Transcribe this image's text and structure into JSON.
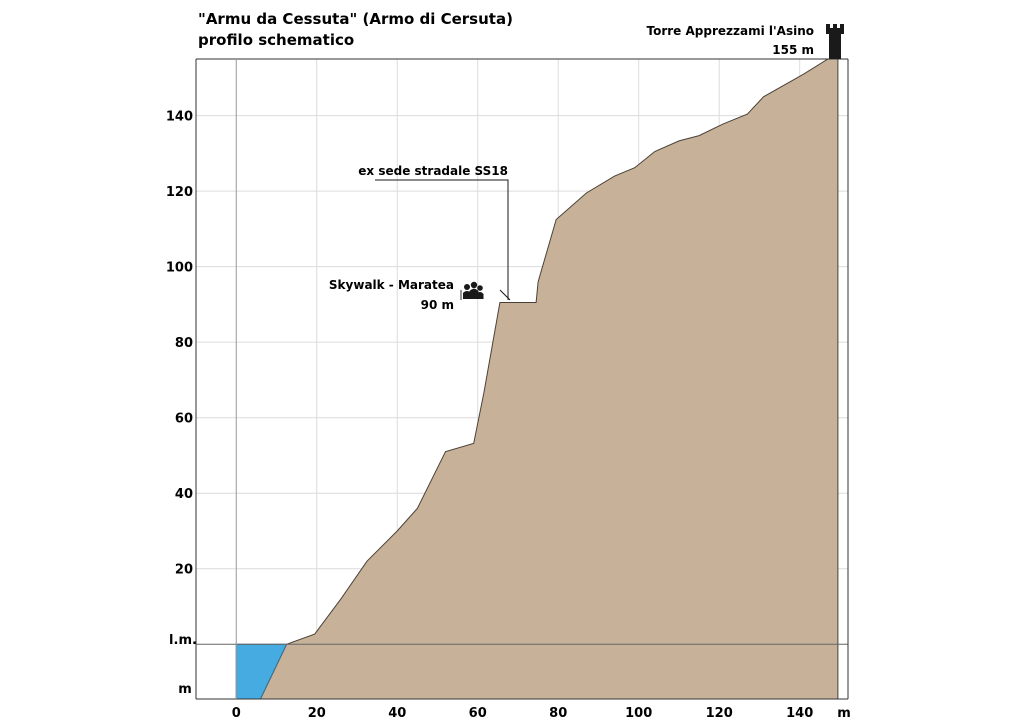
{
  "chart_data": {
    "type": "area",
    "title": "\"Armu da Cessuta\" (Armo di Cersuta)",
    "subtitle": "profilo schematico",
    "xlabel": "m",
    "ylabel": "m",
    "x_ticks": [
      0,
      20,
      40,
      60,
      80,
      100,
      120,
      140
    ],
    "y_ticks": [
      20,
      40,
      60,
      80,
      100,
      120,
      140
    ],
    "sea_level_label": "l.m.",
    "xlim": [
      -10,
      152
    ],
    "ylim": [
      -14.5,
      155
    ],
    "grid": true,
    "series": [
      {
        "points": [
          [
            6,
            -14.5
          ],
          [
            12.5,
            0
          ],
          [
            19.5,
            2.7
          ],
          [
            26,
            12
          ],
          [
            32.5,
            22
          ],
          [
            40,
            30
          ],
          [
            45,
            36
          ],
          [
            52,
            51
          ],
          [
            59,
            53.2
          ],
          [
            61.5,
            66.5
          ],
          [
            65.5,
            90.5
          ],
          [
            74.5,
            90.5
          ],
          [
            75,
            96
          ],
          [
            79.5,
            112.5
          ],
          [
            87,
            119.5
          ],
          [
            94,
            124
          ],
          [
            99,
            126.2
          ],
          [
            104,
            130.5
          ],
          [
            110,
            133.3
          ],
          [
            115,
            134.7
          ],
          [
            121,
            137.8
          ],
          [
            127,
            140.4
          ],
          [
            131,
            145
          ],
          [
            141,
            151
          ],
          [
            147,
            155
          ],
          [
            149.5,
            155
          ],
          [
            149.5,
            -14.5
          ]
        ]
      }
    ],
    "sea": {
      "color": "#46abe0",
      "points": [
        [
          0,
          -14.5
        ],
        [
          0,
          0
        ],
        [
          12.5,
          0
        ],
        [
          6,
          -14.5
        ]
      ]
    },
    "annotations": {
      "skywalk": {
        "name": "Skywalk - Maratea",
        "elevation": "90 m"
      },
      "road": {
        "name": "ex sede stradale SS18"
      },
      "tower": {
        "name": "Torre Apprezzami l'Asino",
        "elevation": "155 m"
      }
    },
    "colors": {
      "ground": "#c7b299",
      "ground_edge": "#4a4238",
      "grid": "#dcdcdc",
      "axis": "#333333",
      "icon": "#1a1a1a"
    }
  }
}
